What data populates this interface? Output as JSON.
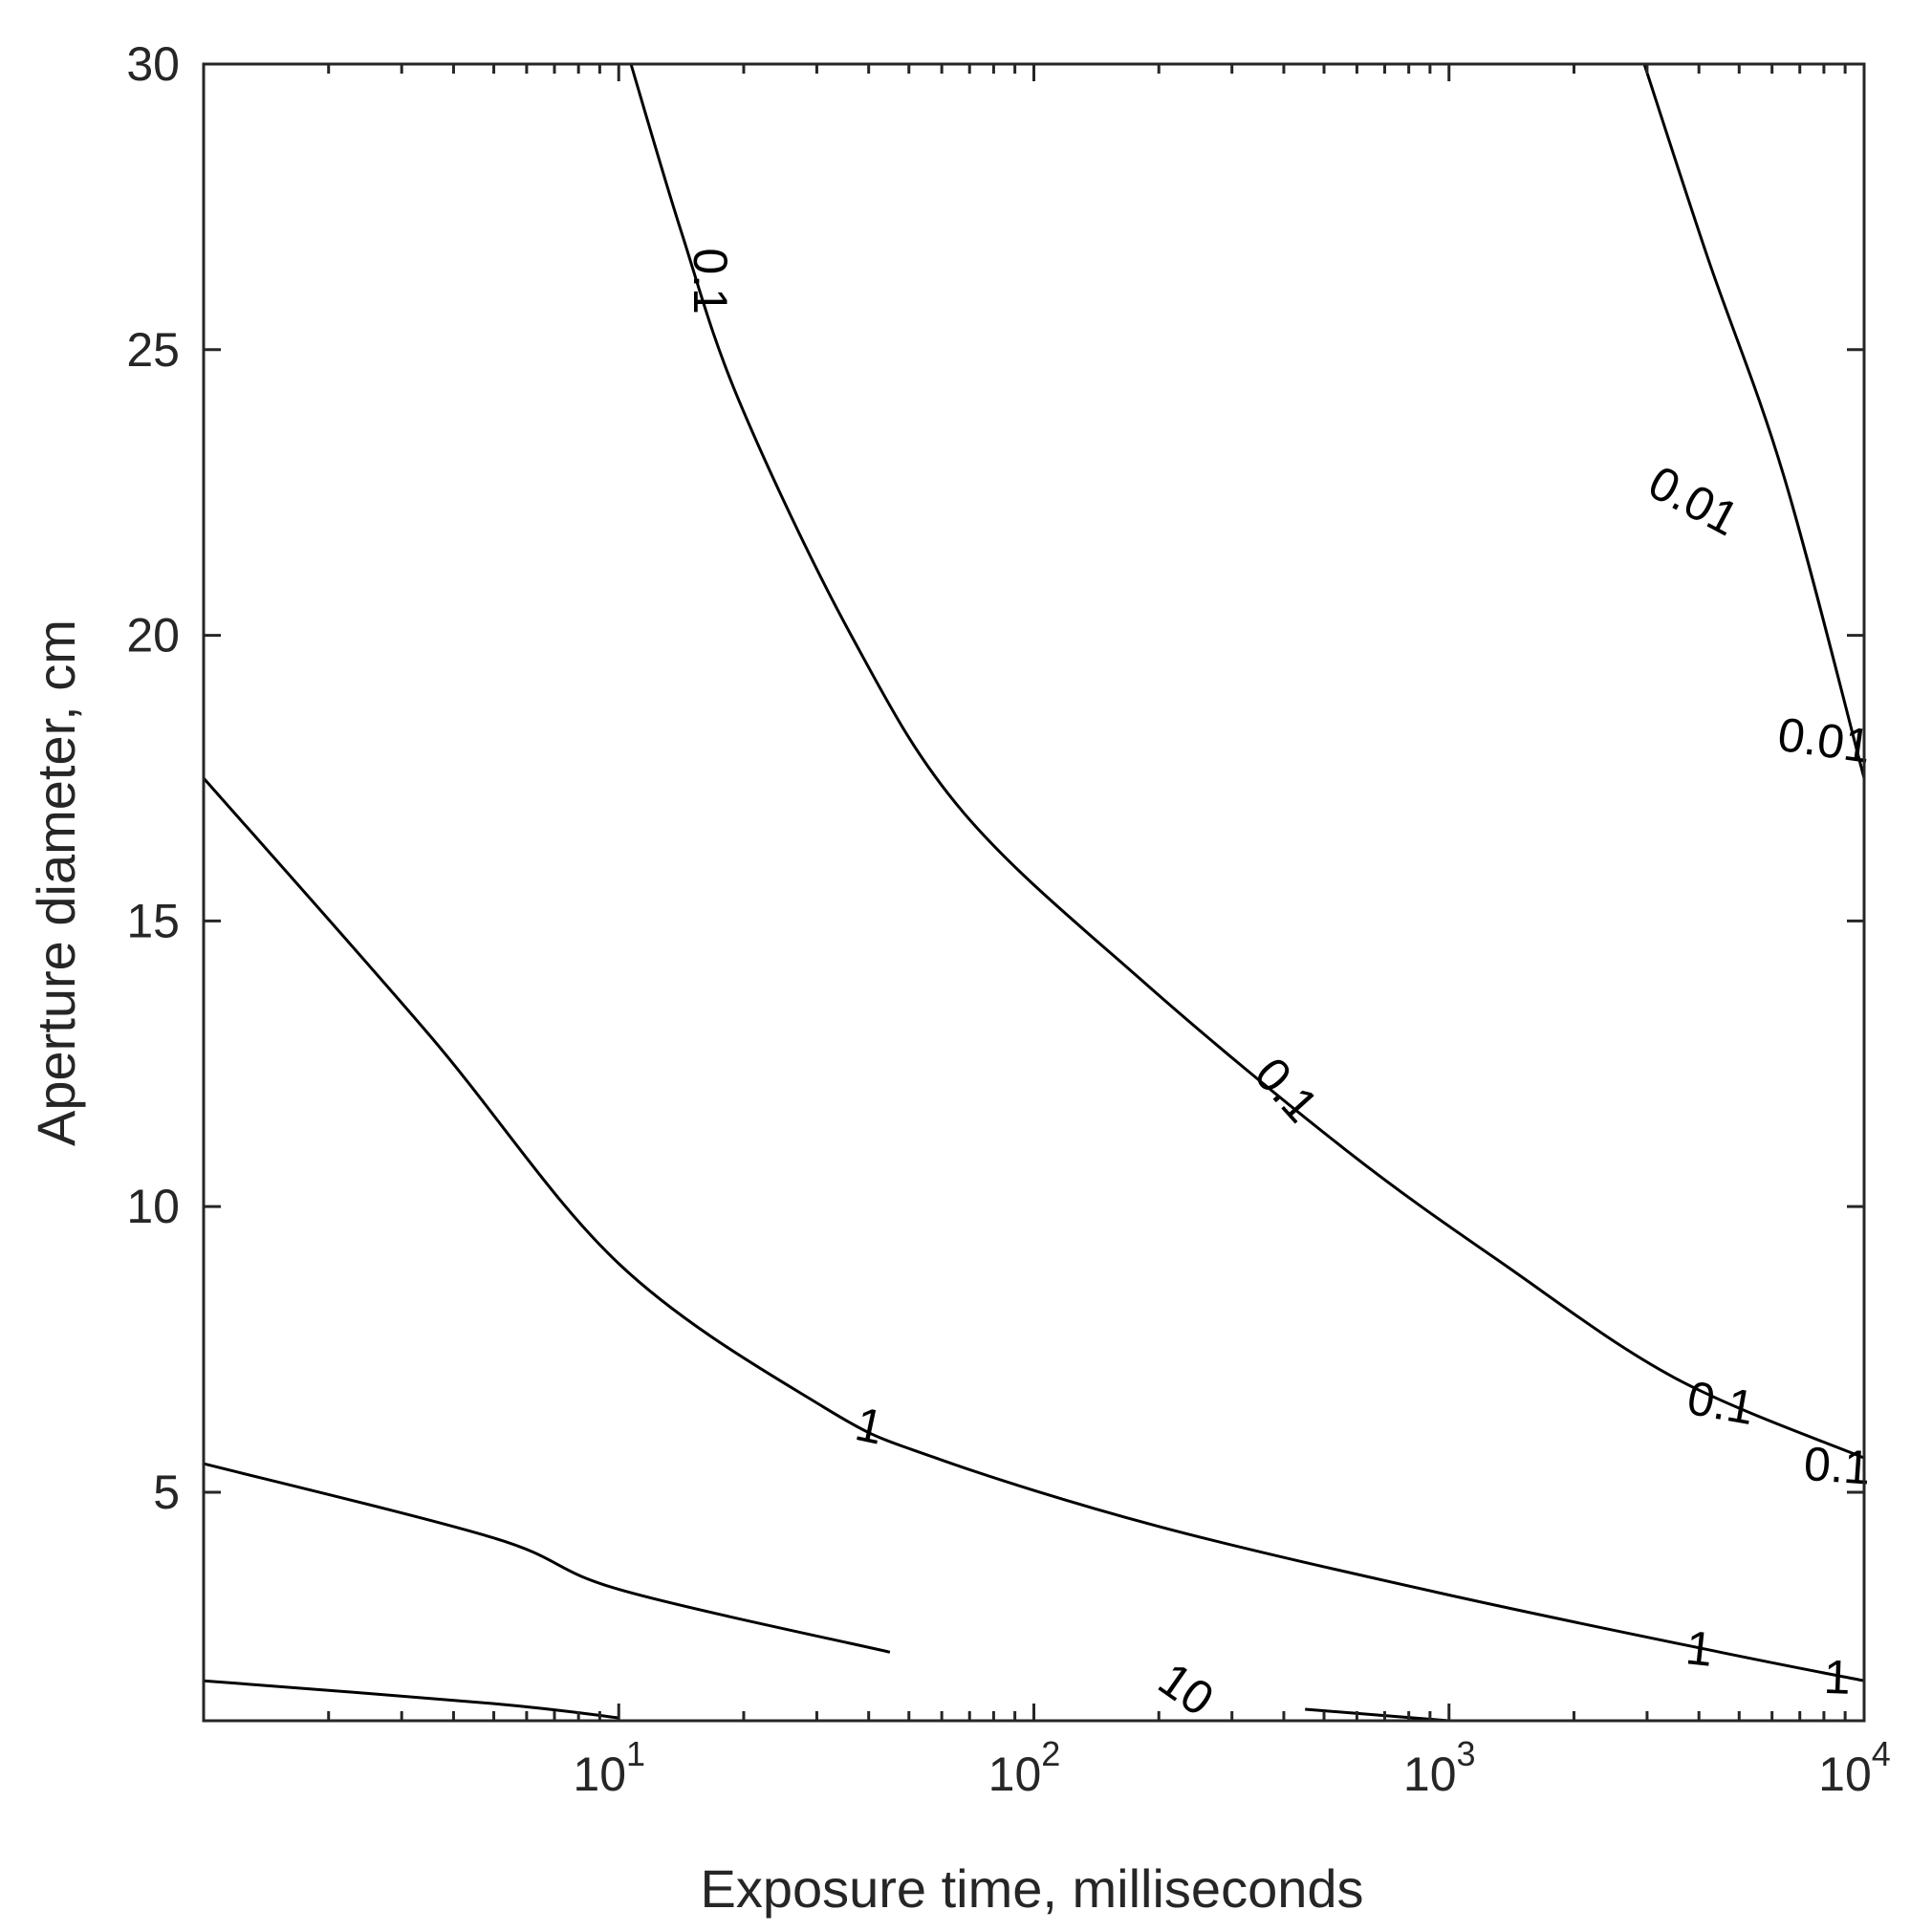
{
  "chart_data": {
    "type": "line",
    "subtype": "contour",
    "title": "",
    "xlabel": "Exposure time, milliseconds",
    "ylabel": "Aperture diameter, cm",
    "xscale": "log",
    "xlim": [
      1,
      10000
    ],
    "ylim": [
      1,
      30
    ],
    "grid": false,
    "legend": "none",
    "x_ticks": [
      {
        "value": 10,
        "base": "10",
        "exp": "1"
      },
      {
        "value": 100,
        "base": "10",
        "exp": "2"
      },
      {
        "value": 1000,
        "base": "10",
        "exp": "3"
      },
      {
        "value": 10000,
        "base": "10",
        "exp": "4"
      }
    ],
    "y_ticks": [
      {
        "value": 5,
        "label": "5"
      },
      {
        "value": 10,
        "label": "10"
      },
      {
        "value": 15,
        "label": "15"
      },
      {
        "value": 20,
        "label": "20"
      },
      {
        "value": 25,
        "label": "25"
      },
      {
        "value": 30,
        "label": "30"
      }
    ],
    "series": [
      {
        "level": "0.01",
        "points": [
          [
            2953,
            30
          ],
          [
            4204,
            26.6
          ],
          [
            6400,
            22.8
          ],
          [
            10000,
            17.5
          ]
        ],
        "labels": [
          {
            "text": "0.01",
            "x": 3850,
            "y": 22.3,
            "rotate": 28
          },
          {
            "text": "0.01",
            "x": 8000,
            "y": 18.1,
            "rotate": 8
          }
        ]
      },
      {
        "level": "0.1",
        "points": [
          [
            10.7,
            30
          ],
          [
            14.1,
            27.1
          ],
          [
            19.5,
            24.1
          ],
          [
            36.3,
            20
          ],
          [
            67.6,
            16.9
          ],
          [
            186,
            13.9
          ],
          [
            562,
            11.0
          ],
          [
            1349,
            9.0
          ],
          [
            3500,
            7.0
          ],
          [
            10000,
            5.6
          ]
        ],
        "labels": [
          {
            "text": "0.1",
            "x": 16.3,
            "y": 26.2,
            "rotate": 90
          },
          {
            "text": "0.1",
            "x": 400,
            "y": 12.0,
            "rotate": 48
          },
          {
            "text": "0.1",
            "x": 4500,
            "y": 6.5,
            "rotate": 10
          },
          {
            "text": "0.1",
            "x": 8600,
            "y": 5.4,
            "rotate": 4
          }
        ]
      },
      {
        "level": "1",
        "points": [
          [
            1,
            17.5
          ],
          [
            3.5,
            13.0
          ],
          [
            10,
            9.0
          ],
          [
            31,
            6.5
          ],
          [
            58,
            5.6
          ],
          [
            200,
            4.4
          ],
          [
            1000,
            3.2
          ],
          [
            4500,
            2.2
          ],
          [
            10000,
            1.7
          ]
        ],
        "labels": [
          {
            "text": "1",
            "x": 40,
            "y": 6.1,
            "rotate": 12
          },
          {
            "text": "1",
            "x": 4000,
            "y": 2.2,
            "rotate": 6
          },
          {
            "text": "1",
            "x": 8600,
            "y": 1.7,
            "rotate": 2
          }
        ]
      },
      {
        "level": "10",
        "points": [
          [
            1,
            1.7
          ],
          [
            5,
            1.3
          ],
          [
            10,
            1.05
          ],
          [
            450,
            1.2
          ],
          [
            1000,
            1.0
          ]
        ],
        "gaps": [
          [
            10,
            450
          ]
        ],
        "labels": [
          {
            "text": "10",
            "x": 230,
            "y": 1.5,
            "rotate": 35
          }
        ]
      },
      {
        "level": "",
        "points": [
          [
            1,
            5.5
          ],
          [
            5,
            4.2
          ],
          [
            10,
            3.3
          ],
          [
            45,
            2.2
          ]
        ],
        "labels": []
      }
    ]
  }
}
